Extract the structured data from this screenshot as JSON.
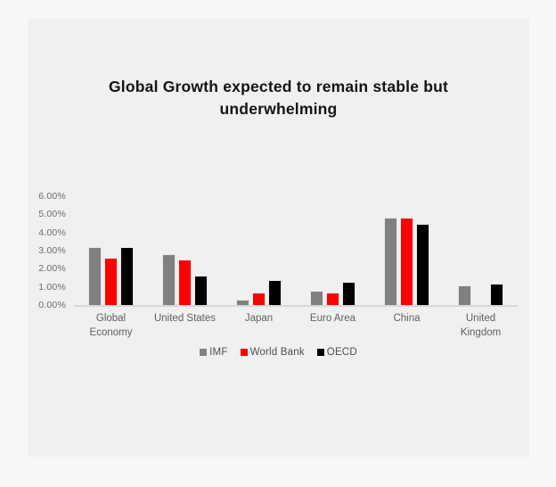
{
  "page": {
    "background_color": "#f8f8f8",
    "card_background_color": "#f0f0f0"
  },
  "chart_data": {
    "type": "bar",
    "title": "Global Growth expected to remain stable but underwhelming",
    "categories": [
      "Global Economy",
      "United States",
      "Japan",
      "Euro Area",
      "China",
      "United Kingdom"
    ],
    "series": [
      {
        "name": "IMF",
        "color": "#808080",
        "values": [
          3.2,
          2.8,
          0.3,
          0.8,
          4.8,
          1.1
        ]
      },
      {
        "name": "World Bank",
        "color": "#ff0000",
        "values": [
          2.6,
          2.5,
          0.7,
          0.7,
          4.8,
          null
        ]
      },
      {
        "name": "OECD",
        "color": "#000000",
        "values": [
          3.2,
          1.6,
          1.4,
          1.3,
          4.5,
          1.2
        ]
      }
    ],
    "xlabel": "",
    "ylabel": "",
    "ylim": [
      0,
      6
    ],
    "yticks": [
      "0.00%",
      "1.00%",
      "2.00%",
      "3.00%",
      "4.00%",
      "5.00%",
      "6.00%"
    ],
    "grid": false,
    "legend_position": "bottom",
    "value_format": "percent"
  },
  "colors": {
    "axis_line": "#d8d8d8",
    "tick_text": "#6a6a6a",
    "category_text": "#5f5f5f",
    "legend_text": "#4d4d4d",
    "title_text": "#141414"
  }
}
